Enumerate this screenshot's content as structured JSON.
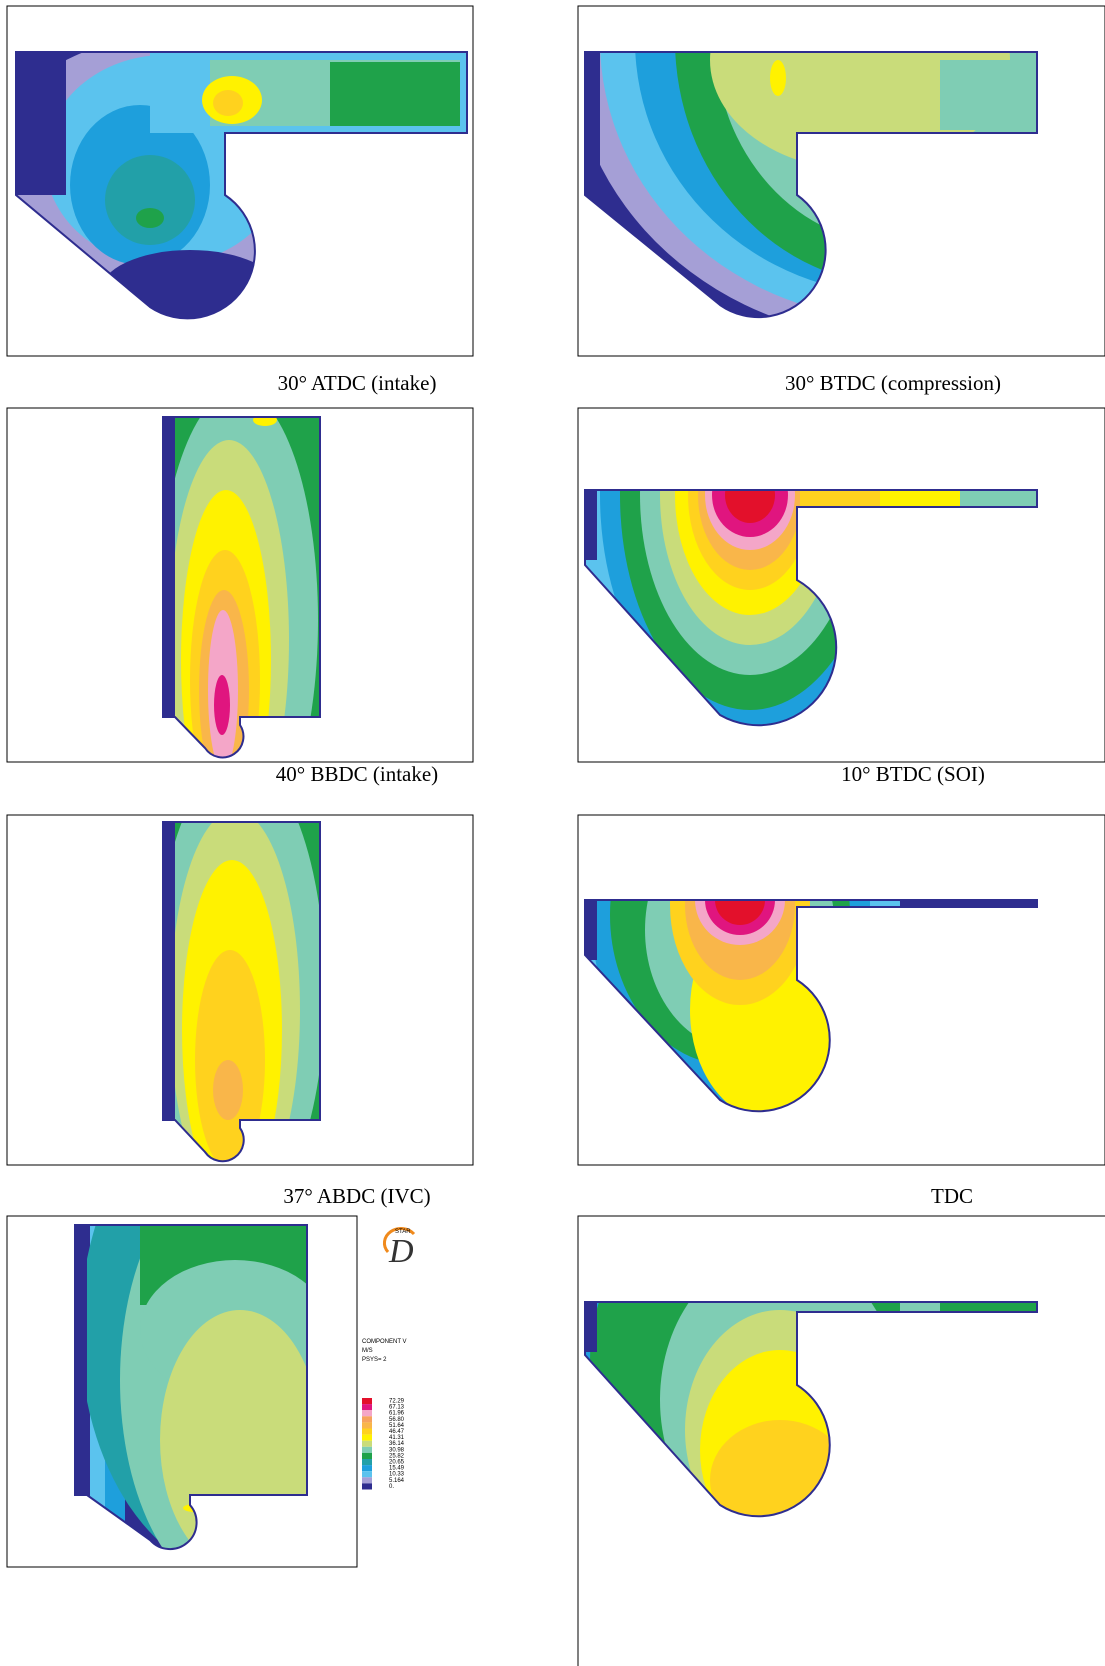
{
  "panels": [
    {
      "caption": "30° ATDC (intake)"
    },
    {
      "caption": "30° BTDC (compression)"
    },
    {
      "caption": "40° BBDC (intake)"
    },
    {
      "caption": "10° BTDC (SOI)"
    },
    {
      "caption": "37° ABDC (IVC)"
    },
    {
      "caption": "TDC"
    },
    {},
    {}
  ],
  "logo": {
    "brand": "STAR",
    "letter": "D"
  },
  "legend": {
    "title": "COMPONENT V",
    "unit": "M/S",
    "system": "PSYS= 2",
    "labels": [
      "72.29",
      "67.13",
      "61.96",
      "56.80",
      "51.64",
      "46.47",
      "41.31",
      "36.14",
      "30.98",
      "25.82",
      "20.65",
      "15.49",
      "10.33",
      "5.164",
      "0."
    ]
  }
}
